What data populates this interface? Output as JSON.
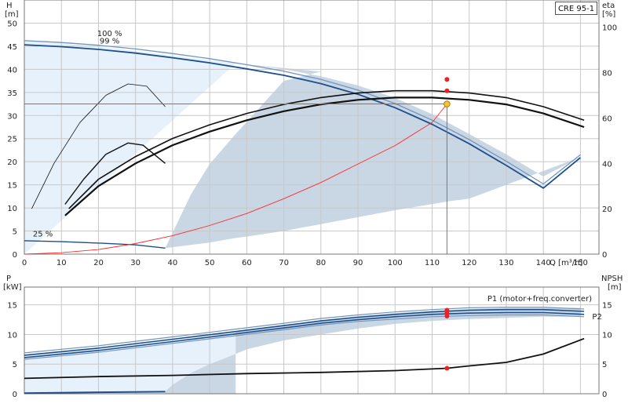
{
  "model_label": "CRE 95-1",
  "colors": {
    "grid": "#c8c8c8",
    "band": "#c9d6e3",
    "light_band": "#e7f1fb",
    "curve_blue": "#1d4f8c",
    "curve_blue_light": "#6f95c2",
    "curve_black": "#111111",
    "system_curve": "#ff2a2a",
    "duty_line": "#777777",
    "duty_point_fill": "#f2c23c",
    "duty_point_stroke": "#b07a00",
    "marker_red": "#ff1a1a"
  },
  "chart_data": [
    {
      "type": "line",
      "name": "head-efficiency",
      "xlabel": "Q [m³/h]",
      "ylabel_left": [
        "H",
        "[m]"
      ],
      "ylabel_right": [
        "eta",
        "[%]"
      ],
      "xlim": [
        0,
        155
      ],
      "ylim_left": [
        0,
        55
      ],
      "ylim_right": [
        0,
        112
      ],
      "x_ticks": [
        0,
        10,
        20,
        30,
        40,
        50,
        60,
        70,
        80,
        90,
        100,
        110,
        120,
        130,
        140,
        150
      ],
      "y_ticks_left": [
        0,
        5,
        10,
        15,
        20,
        25,
        30,
        35,
        40,
        45,
        50
      ],
      "y_ticks_right": [
        0,
        20,
        40,
        60,
        80,
        100
      ],
      "grid": true,
      "annotations": [
        {
          "text": "100 %",
          "x": 23,
          "y": 47.2
        },
        {
          "text": "99 %",
          "x": 23,
          "y": 45.6
        },
        {
          "text": "25 %",
          "x": 5,
          "y": 3.8
        }
      ],
      "band_left": [
        [
          0,
          46
        ],
        [
          10,
          45.6
        ],
        [
          20,
          44.9
        ],
        [
          30,
          44
        ],
        [
          40,
          43
        ],
        [
          50,
          42
        ],
        [
          57,
          41.3
        ],
        [
          0,
          0
        ]
      ],
      "band_main": [
        [
          57,
          41.3
        ],
        [
          70,
          40
        ],
        [
          80,
          38.5
        ],
        [
          90,
          36.5
        ],
        [
          100,
          33.8
        ],
        [
          110,
          30.3
        ],
        [
          120,
          26
        ],
        [
          130,
          21.6
        ],
        [
          140,
          16.8
        ],
        [
          150,
          21
        ],
        [
          140,
          18
        ],
        [
          130,
          15
        ],
        [
          120,
          12
        ],
        [
          115,
          11.5
        ],
        [
          100,
          9.5
        ],
        [
          90,
          8
        ],
        [
          80,
          6.5
        ],
        [
          70,
          5
        ],
        [
          60,
          3.8
        ],
        [
          57,
          3.5
        ],
        [
          50,
          2.5
        ],
        [
          38,
          1.3
        ],
        [
          45,
          13
        ],
        [
          50,
          19.5
        ],
        [
          57,
          26
        ],
        [
          70,
          37.5
        ],
        [
          80,
          39.5
        ]
      ],
      "series": [
        {
          "name": "100 %",
          "style": "head-100",
          "axis": "left",
          "points": [
            [
              0,
              46.2
            ],
            [
              10,
              45.8
            ],
            [
              20,
              45.2
            ],
            [
              30,
              44.4
            ],
            [
              40,
              43.4
            ],
            [
              50,
              42.3
            ],
            [
              60,
              41
            ],
            [
              70,
              39.6
            ],
            [
              80,
              37.8
            ],
            [
              90,
              35.5
            ],
            [
              100,
              32.6
            ],
            [
              110,
              29
            ],
            [
              120,
              24.8
            ],
            [
              130,
              20.1
            ],
            [
              140,
              15.2
            ],
            [
              150,
              21.5
            ]
          ]
        },
        {
          "name": "99 %",
          "style": "head-99",
          "axis": "left",
          "points": [
            [
              0,
              45.3
            ],
            [
              10,
              44.9
            ],
            [
              20,
              44.3
            ],
            [
              30,
              43.5
            ],
            [
              40,
              42.5
            ],
            [
              50,
              41.4
            ],
            [
              60,
              40.1
            ],
            [
              70,
              38.7
            ],
            [
              80,
              36.9
            ],
            [
              90,
              34.6
            ],
            [
              100,
              31.7
            ],
            [
              110,
              28.1
            ],
            [
              120,
              23.9
            ],
            [
              130,
              19.2
            ],
            [
              140,
              14.3
            ],
            [
              150,
              20.9
            ]
          ]
        },
        {
          "name": "25 %",
          "style": "head-25",
          "axis": "left",
          "points": [
            [
              0,
              2.9
            ],
            [
              10,
              2.7
            ],
            [
              20,
              2.4
            ],
            [
              30,
              2
            ],
            [
              38,
              1.3
            ]
          ]
        },
        {
          "name": "",
          "style": "eta-100",
          "axis": "right",
          "points": [
            [
              12,
              20
            ],
            [
              20,
              33
            ],
            [
              30,
              43
            ],
            [
              40,
              51
            ],
            [
              50,
              57
            ],
            [
              60,
              62
            ],
            [
              70,
              66
            ],
            [
              80,
              69
            ],
            [
              90,
              71
            ],
            [
              100,
              72
            ],
            [
              110,
              72
            ],
            [
              120,
              71
            ],
            [
              130,
              69
            ],
            [
              140,
              65
            ],
            [
              151,
              59
            ]
          ]
        },
        {
          "name": "",
          "style": "eta-99",
          "axis": "right",
          "points": [
            [
              11,
              17
            ],
            [
              20,
              30
            ],
            [
              30,
              40
            ],
            [
              40,
              48
            ],
            [
              50,
              54
            ],
            [
              60,
              59
            ],
            [
              70,
              63
            ],
            [
              80,
              66
            ],
            [
              90,
              68
            ],
            [
              100,
              69
            ],
            [
              110,
              69
            ],
            [
              120,
              68
            ],
            [
              130,
              66
            ],
            [
              140,
              62
            ],
            [
              151,
              56
            ]
          ]
        },
        {
          "name": "",
          "style": "eta-part-1",
          "axis": "right",
          "points": [
            [
              2,
              20
            ],
            [
              8,
              40
            ],
            [
              15,
              58
            ],
            [
              22,
              70
            ],
            [
              28,
              75
            ],
            [
              33,
              74
            ],
            [
              38,
              65
            ]
          ]
        },
        {
          "name": "",
          "style": "eta-part-2",
          "axis": "right",
          "points": [
            [
              11,
              22
            ],
            [
              16,
              33
            ],
            [
              22,
              44
            ],
            [
              28,
              49
            ],
            [
              32,
              48
            ],
            [
              38,
              40
            ]
          ]
        },
        {
          "name": "",
          "style": "system",
          "axis": "left",
          "points": [
            [
              0,
              0
            ],
            [
              10,
              0.3
            ],
            [
              20,
              1
            ],
            [
              30,
              2.3
            ],
            [
              40,
              4
            ],
            [
              50,
              6.2
            ],
            [
              60,
              8.8
            ],
            [
              70,
              12
            ],
            [
              80,
              15.5
            ],
            [
              90,
              19.5
            ],
            [
              100,
              23.5
            ],
            [
              110,
              28.5
            ],
            [
              114,
              32.5
            ]
          ]
        }
      ],
      "duty_point": {
        "q": 114,
        "h": 32.5
      },
      "eta_markers": [
        {
          "q": 114,
          "eta": 77
        },
        {
          "q": 114,
          "eta": 72
        }
      ]
    },
    {
      "type": "line",
      "name": "power-npsh",
      "ylabel_left": [
        "P",
        "[kW]"
      ],
      "ylabel_right": [
        "NPSH",
        "[m]"
      ],
      "xlim": [
        0,
        155
      ],
      "ylim_left": [
        0,
        18
      ],
      "ylim_right": [
        0,
        18
      ],
      "y_ticks_left": [
        0,
        5,
        10,
        15
      ],
      "y_ticks_right": [
        0,
        5,
        10,
        15
      ],
      "grid": true,
      "annotations": [
        {
          "text": "P1 (motor+freq.converter)",
          "x": 139,
          "y": 15.6
        },
        {
          "text": "P2",
          "x": 154.5,
          "y": 12.6
        }
      ],
      "band_left": [
        [
          0,
          6.6
        ],
        [
          20,
          7.8
        ],
        [
          40,
          9.2
        ],
        [
          57,
          10.5
        ],
        [
          57,
          0
        ],
        [
          0,
          0
        ]
      ],
      "band_main": [
        [
          57,
          10.6
        ],
        [
          70,
          11.6
        ],
        [
          80,
          12.4
        ],
        [
          90,
          13.1
        ],
        [
          100,
          13.6
        ],
        [
          110,
          14
        ],
        [
          120,
          14.3
        ],
        [
          130,
          14.5
        ],
        [
          150,
          14.5
        ],
        [
          150,
          13
        ],
        [
          140,
          13
        ],
        [
          130,
          12.8
        ],
        [
          120,
          12.6
        ],
        [
          110,
          12.3
        ],
        [
          100,
          11.8
        ],
        [
          90,
          11
        ],
        [
          80,
          10
        ],
        [
          70,
          9
        ],
        [
          60,
          7.5
        ],
        [
          55,
          6.2
        ],
        [
          50,
          5
        ],
        [
          45,
          3.5
        ],
        [
          40,
          1.5
        ],
        [
          38,
          0.4
        ],
        [
          38,
          0
        ],
        [
          57,
          0
        ]
      ],
      "series": [
        {
          "name": "",
          "style": "p-1",
          "axis": "left",
          "points": [
            [
              0,
              6.9
            ],
            [
              20,
              8.1
            ],
            [
              40,
              9.6
            ],
            [
              57,
              10.9
            ],
            [
              70,
              11.9
            ],
            [
              80,
              12.7
            ],
            [
              90,
              13.3
            ],
            [
              100,
              13.8
            ],
            [
              110,
              14.2
            ],
            [
              120,
              14.5
            ],
            [
              130,
              14.6
            ],
            [
              140,
              14.6
            ],
            [
              151,
              14.3
            ]
          ]
        },
        {
          "name": "",
          "style": "p-2",
          "axis": "left",
          "points": [
            [
              0,
              6.5
            ],
            [
              20,
              7.7
            ],
            [
              40,
              9.2
            ],
            [
              57,
              10.5
            ],
            [
              70,
              11.5
            ],
            [
              80,
              12.3
            ],
            [
              90,
              12.9
            ],
            [
              100,
              13.4
            ],
            [
              110,
              13.8
            ],
            [
              120,
              14.1
            ],
            [
              130,
              14.2
            ],
            [
              140,
              14.2
            ],
            [
              151,
              13.9
            ]
          ]
        },
        {
          "name": "",
          "style": "p-3",
          "axis": "left",
          "points": [
            [
              0,
              6.1
            ],
            [
              20,
              7.3
            ],
            [
              40,
              8.8
            ],
            [
              57,
              10.1
            ],
            [
              70,
              11.1
            ],
            [
              80,
              11.9
            ],
            [
              90,
              12.5
            ],
            [
              100,
              13
            ],
            [
              110,
              13.4
            ],
            [
              120,
              13.6
            ],
            [
              130,
              13.7
            ],
            [
              140,
              13.7
            ],
            [
              151,
              13.4
            ]
          ]
        },
        {
          "name": "",
          "style": "p-4",
          "axis": "left",
          "points": [
            [
              0,
              5.8
            ],
            [
              20,
              7
            ],
            [
              40,
              8.5
            ],
            [
              57,
              9.8
            ],
            [
              70,
              10.8
            ],
            [
              80,
              11.6
            ],
            [
              90,
              12.2
            ],
            [
              100,
              12.6
            ],
            [
              110,
              13
            ],
            [
              120,
              13.2
            ],
            [
              130,
              13.3
            ],
            [
              140,
              13.3
            ],
            [
              151,
              13
            ]
          ]
        },
        {
          "name": "",
          "style": "p-low",
          "axis": "left",
          "points": [
            [
              0,
              0.1
            ],
            [
              20,
              0.25
            ],
            [
              38,
              0.35
            ]
          ]
        },
        {
          "name": "",
          "style": "npsh",
          "axis": "right",
          "points": [
            [
              0,
              2.6
            ],
            [
              20,
              2.9
            ],
            [
              40,
              3.1
            ],
            [
              60,
              3.4
            ],
            [
              80,
              3.6
            ],
            [
              100,
              3.9
            ],
            [
              114,
              4.3
            ],
            [
              120,
              4.7
            ],
            [
              130,
              5.3
            ],
            [
              140,
              6.7
            ],
            [
              151,
              9.3
            ]
          ]
        }
      ],
      "duty_line_q": 114,
      "p_markers": [
        {
          "q": 114,
          "p": 14.1
        },
        {
          "q": 114,
          "p": 13.6
        },
        {
          "q": 114,
          "p": 13.1
        }
      ],
      "npsh_marker": {
        "q": 114,
        "npsh": 4.3
      }
    }
  ]
}
